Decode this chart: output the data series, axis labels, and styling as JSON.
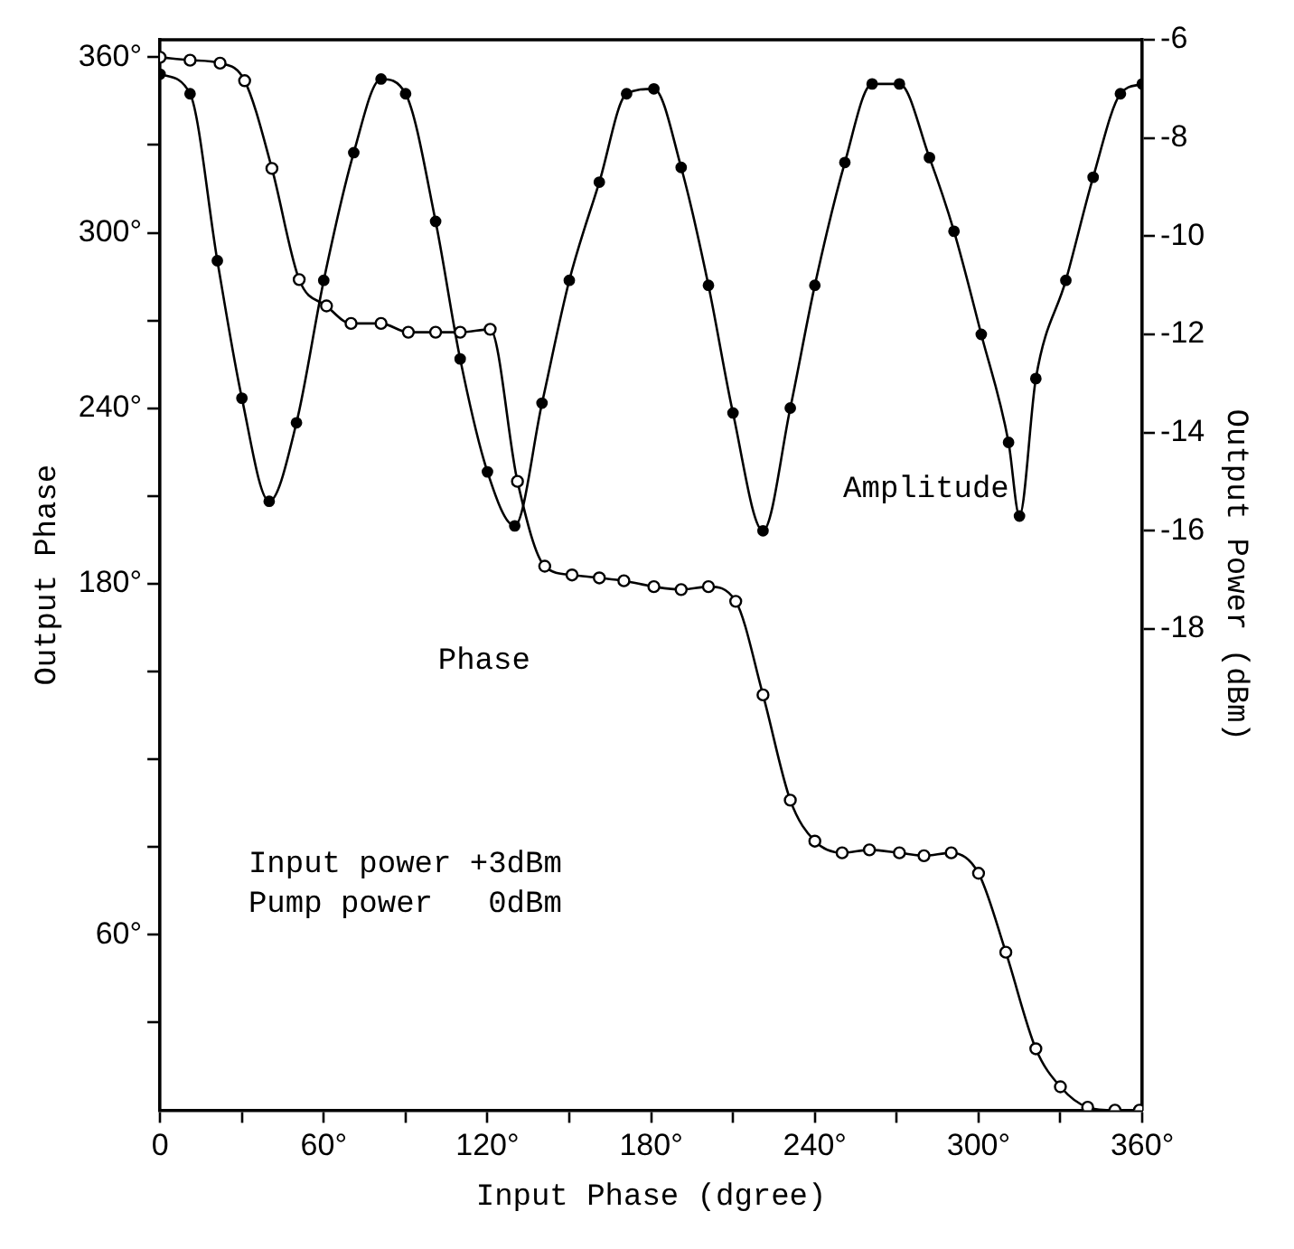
{
  "chart_data": {
    "type": "line",
    "xlabel": "Input Phase (dgree)",
    "ylabel": "Output Phase",
    "y2label": "Output Power (dBm)",
    "xlim": [
      0,
      360
    ],
    "ylim": [
      0,
      366
    ],
    "y2lim": [
      -27.8,
      -6
    ],
    "xticks": [
      {
        "value": 0,
        "label": "0"
      },
      {
        "value": 30,
        "label": null
      },
      {
        "value": 60,
        "label": "60°"
      },
      {
        "value": 90,
        "label": null
      },
      {
        "value": 120,
        "label": "120°"
      },
      {
        "value": 150,
        "label": null
      },
      {
        "value": 180,
        "label": "180°"
      },
      {
        "value": 210,
        "label": null
      },
      {
        "value": 240,
        "label": "240°"
      },
      {
        "value": 270,
        "label": null
      },
      {
        "value": 300,
        "label": "300°"
      },
      {
        "value": 330,
        "label": null
      },
      {
        "value": 360,
        "label": "360°"
      }
    ],
    "yticks": [
      {
        "value": 30,
        "label": null
      },
      {
        "value": 60,
        "label": "60°"
      },
      {
        "value": 90,
        "label": null
      },
      {
        "value": 120,
        "label": null
      },
      {
        "value": 150,
        "label": null
      },
      {
        "value": 180,
        "label": "180°"
      },
      {
        "value": 210,
        "label": null
      },
      {
        "value": 240,
        "label": "240°"
      },
      {
        "value": 270,
        "label": null
      },
      {
        "value": 300,
        "label": "300°"
      },
      {
        "value": 330,
        "label": null
      },
      {
        "value": 360,
        "label": "360°"
      }
    ],
    "y2ticks": [
      -6,
      -8,
      -10,
      -12,
      -14,
      -16,
      -18
    ],
    "grid": false,
    "legend": false,
    "marker": "circle",
    "line_style": "solid",
    "annotations": [
      "Input power +3dBm",
      "Pump power   0dBm"
    ],
    "series": [
      {
        "name": "Phase",
        "color": "#000000",
        "x": [
          0,
          11,
          22,
          31,
          41,
          51,
          61,
          70,
          81,
          91,
          101,
          110,
          121,
          131,
          141,
          151,
          161,
          170,
          181,
          191,
          201,
          211,
          221,
          231,
          240,
          250,
          260,
          271,
          280,
          290,
          300,
          310,
          321,
          330,
          340,
          350,
          359
        ],
        "values": [
          360,
          359,
          358,
          352,
          322,
          284,
          275,
          269,
          269,
          266,
          266,
          266,
          267,
          215,
          186,
          183,
          182,
          181,
          179,
          178,
          179,
          174,
          142,
          106,
          92,
          88,
          89,
          88,
          87,
          88,
          81,
          54,
          21,
          8,
          1,
          0,
          0
        ]
      },
      {
        "name": "Amplitude",
        "color": "#000000",
        "axis": "y2",
        "x": [
          0,
          11,
          21,
          30,
          40,
          50,
          60,
          71,
          81,
          90,
          101,
          110,
          120,
          130,
          140,
          150,
          161,
          171,
          181,
          191,
          201,
          210,
          221,
          231,
          240,
          251,
          261,
          271,
          282,
          291,
          301,
          311,
          315,
          321,
          332,
          342,
          352,
          360
        ],
        "values": [
          -6.7,
          -7.1,
          -10.5,
          -13.3,
          -15.4,
          -13.8,
          -10.9,
          -8.3,
          -6.8,
          -7.1,
          -9.7,
          -12.5,
          -14.8,
          -15.9,
          -13.4,
          -10.9,
          -8.9,
          -7.1,
          -7.0,
          -8.6,
          -11.0,
          -13.6,
          -16.0,
          -13.5,
          -11.0,
          -8.5,
          -6.9,
          -6.9,
          -8.4,
          -9.9,
          -12.0,
          -14.2,
          -15.7,
          -12.9,
          -10.9,
          -8.8,
          -7.1,
          -6.9
        ]
      }
    ]
  }
}
